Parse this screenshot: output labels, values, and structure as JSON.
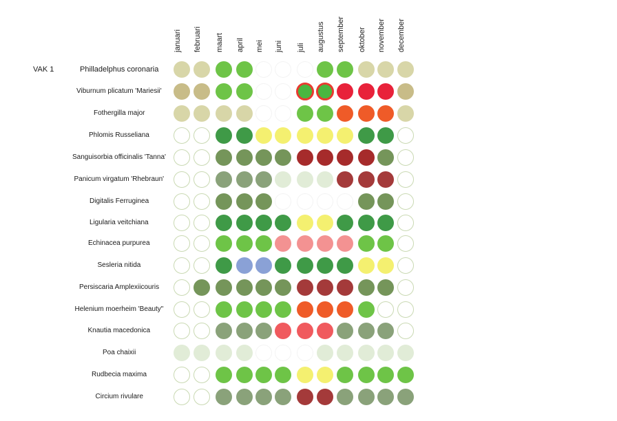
{
  "section_label": "VAK 1",
  "months": [
    "januari",
    "februari",
    "maart",
    "april",
    "mei",
    "juni",
    "juli",
    "augustus",
    "september",
    "oktober",
    "november",
    "december"
  ],
  "palette": {
    "k": "#d8d6a8",
    "K": "#c8bc88",
    "e": "#ffffff",
    "o": "#ffffff",
    "G": "#6ec447",
    "D": "#3f9a47",
    "M": "#75955a",
    "m": "#8aa27a",
    "p": "#e1ecd7",
    "Y": "#f4f070",
    "R": "#a62b2b",
    "r": "#a43a3a",
    "F": "#e8223a",
    "O": "#ef5b28",
    "P": "#f39292",
    "S": "#f05a5e",
    "B": "#8aa1d6",
    "X": "#49b640"
  },
  "outline_color": "#c9d9b2",
  "ring_color": "#e83a30",
  "plants": [
    {
      "name": "Philladelphus coronaria",
      "months": [
        "k",
        "k",
        "G",
        "G",
        "e",
        "e",
        "e",
        "G",
        "G",
        "k",
        "k",
        "k"
      ]
    },
    {
      "name": "Viburnum plicatum 'Mariesii'",
      "months": [
        "K",
        "K",
        "G",
        "G",
        "e",
        "e",
        "X",
        "X",
        "F",
        "F",
        "F",
        "K"
      ]
    },
    {
      "name": "Fothergilla major",
      "months": [
        "k",
        "k",
        "k",
        "k",
        "e",
        "e",
        "G",
        "G",
        "O",
        "O",
        "O",
        "k"
      ]
    },
    {
      "name": "Phlomis Russeliana",
      "months": [
        "o",
        "o",
        "D",
        "D",
        "Y",
        "Y",
        "Y",
        "Y",
        "Y",
        "D",
        "D",
        "o"
      ]
    },
    {
      "name": "Sanguisorbia officinalis 'Tanna'",
      "months": [
        "o",
        "o",
        "M",
        "M",
        "M",
        "M",
        "R",
        "R",
        "R",
        "R",
        "M",
        "o"
      ]
    },
    {
      "name": "Panicum virgatum  'Rhebraun'",
      "months": [
        "o",
        "o",
        "m",
        "m",
        "m",
        "p",
        "p",
        "p",
        "r",
        "r",
        "r",
        "o"
      ]
    },
    {
      "name": "Digitalis Ferruginea",
      "months": [
        "o",
        "o",
        "M",
        "M",
        "M",
        "e",
        "e",
        "e",
        "e",
        "M",
        "M",
        "o"
      ]
    },
    {
      "name": "Ligularia veitchiana",
      "months": [
        "o",
        "o",
        "D",
        "D",
        "D",
        "D",
        "Y",
        "Y",
        "D",
        "D",
        "D",
        "o"
      ]
    },
    {
      "name": "Echinacea purpurea",
      "months": [
        "o",
        "o",
        "G",
        "G",
        "G",
        "P",
        "P",
        "P",
        "P",
        "G",
        "G",
        "o"
      ]
    },
    {
      "name": "Sesleria nitida",
      "months": [
        "o",
        "o",
        "D",
        "B",
        "B",
        "D",
        "D",
        "D",
        "D",
        "Y",
        "Y",
        "o"
      ]
    },
    {
      "name": "Persiscaria Amplexiicouris",
      "months": [
        "o",
        "M",
        "M",
        "M",
        "M",
        "M",
        "r",
        "r",
        "r",
        "M",
        "M",
        "o"
      ]
    },
    {
      "name": "Helenium  moerheim 'Beauty\"",
      "months": [
        "o",
        "o",
        "G",
        "G",
        "G",
        "G",
        "O",
        "O",
        "O",
        "G",
        "o",
        "o"
      ]
    },
    {
      "name": "Knautia macedonica",
      "months": [
        "o",
        "o",
        "m",
        "m",
        "m",
        "S",
        "S",
        "S",
        "m",
        "m",
        "m",
        "o"
      ]
    },
    {
      "name": "Poa chaixii",
      "months": [
        "p",
        "p",
        "p",
        "p",
        "e",
        "e",
        "e",
        "p",
        "p",
        "p",
        "p",
        "p"
      ]
    },
    {
      "name": "Rudbecia maxima",
      "months": [
        "o",
        "o",
        "G",
        "G",
        "G",
        "G",
        "Y",
        "Y",
        "G",
        "G",
        "G",
        "G"
      ]
    },
    {
      "name": "Circium rivulare",
      "months": [
        "o",
        "o",
        "m",
        "m",
        "m",
        "m",
        "r",
        "r",
        "m",
        "m",
        "m",
        "m"
      ]
    }
  ]
}
